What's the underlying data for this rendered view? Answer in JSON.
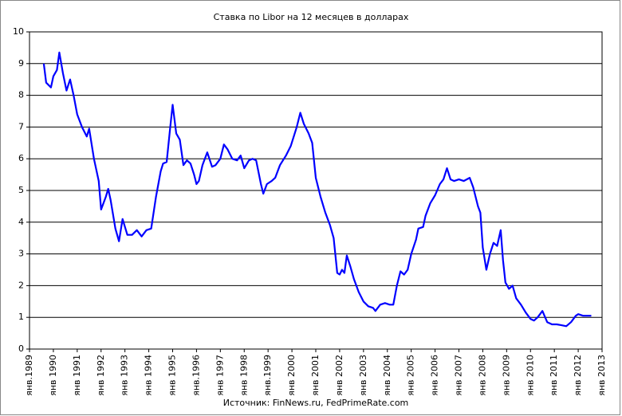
{
  "chart_data": {
    "type": "line",
    "title": "Ставка по Libor на 12 месяцев в долларах",
    "source": "Источник: FinNews.ru, FedPrimeRate.com",
    "grid": true,
    "ylim": [
      0,
      10
    ],
    "yticks": [
      0,
      1,
      2,
      3,
      4,
      5,
      6,
      7,
      8,
      9,
      10
    ],
    "xlim": [
      1989,
      2013
    ],
    "xticks": [
      {
        "value": 1989,
        "label": "янв.1989"
      },
      {
        "value": 1990,
        "label": "янв 1990"
      },
      {
        "value": 1991,
        "label": "янв 1991"
      },
      {
        "value": 1992,
        "label": "янв 1992"
      },
      {
        "value": 1993,
        "label": "янв 1993"
      },
      {
        "value": 1994,
        "label": "янв 1994"
      },
      {
        "value": 1995,
        "label": "янв 1995"
      },
      {
        "value": 1996,
        "label": "янв.1996"
      },
      {
        "value": 1997,
        "label": "янв 1997"
      },
      {
        "value": 1998,
        "label": "янв 1998"
      },
      {
        "value": 1999,
        "label": "янв.1999"
      },
      {
        "value": 2000,
        "label": "янв 2000"
      },
      {
        "value": 2001,
        "label": "янв 2001"
      },
      {
        "value": 2002,
        "label": "янв 2002"
      },
      {
        "value": 2003,
        "label": "янв 2003"
      },
      {
        "value": 2004,
        "label": "янв 2004"
      },
      {
        "value": 2005,
        "label": "янв 2005"
      },
      {
        "value": 2006,
        "label": "янв 2006"
      },
      {
        "value": 2007,
        "label": "янв 2007"
      },
      {
        "value": 2008,
        "label": "янв 2008"
      },
      {
        "value": 2009,
        "label": "янв 2009"
      },
      {
        "value": 2010,
        "label": "янв 2010"
      },
      {
        "value": 2011,
        "label": "янв 2011"
      },
      {
        "value": 2012,
        "label": "янв 2012"
      },
      {
        "value": 2013,
        "label": "янв 2013"
      }
    ],
    "x": [
      1989.6,
      1989.7,
      1989.9,
      1990.0,
      1990.15,
      1990.25,
      1990.4,
      1990.55,
      1990.7,
      1990.85,
      1991.0,
      1991.2,
      1991.4,
      1991.5,
      1991.7,
      1991.9,
      1992.0,
      1992.2,
      1992.3,
      1992.4,
      1992.6,
      1992.75,
      1992.9,
      1993.1,
      1993.3,
      1993.5,
      1993.7,
      1993.9,
      1994.1,
      1994.3,
      1994.5,
      1994.6,
      1994.75,
      1994.9,
      1995.0,
      1995.15,
      1995.3,
      1995.45,
      1995.6,
      1995.75,
      1995.9,
      1996.0,
      1996.1,
      1996.25,
      1996.45,
      1996.65,
      1996.8,
      1997.0,
      1997.15,
      1997.3,
      1997.5,
      1997.7,
      1997.85,
      1998.0,
      1998.2,
      1998.35,
      1998.5,
      1998.7,
      1998.8,
      1998.95,
      1999.15,
      1999.3,
      1999.5,
      1999.75,
      1999.95,
      2000.2,
      2000.35,
      2000.5,
      2000.7,
      2000.85,
      2001.0,
      2001.2,
      2001.4,
      2001.6,
      2001.75,
      2001.9,
      2002.0,
      2002.1,
      2002.2,
      2002.3,
      2002.45,
      2002.6,
      2002.8,
      2003.0,
      2003.2,
      2003.4,
      2003.5,
      2003.7,
      2003.9,
      2004.1,
      2004.25,
      2004.4,
      2004.55,
      2004.7,
      2004.85,
      2005.0,
      2005.2,
      2005.3,
      2005.5,
      2005.6,
      2005.8,
      2006.0,
      2006.2,
      2006.35,
      2006.5,
      2006.65,
      2006.8,
      2007.0,
      2007.2,
      2007.45,
      2007.6,
      2007.8,
      2007.9,
      2008.0,
      2008.15,
      2008.3,
      2008.45,
      2008.6,
      2008.75,
      2008.85,
      2008.95,
      2009.1,
      2009.25,
      2009.4,
      2009.6,
      2009.8,
      2010.0,
      2010.15,
      2010.3,
      2010.5,
      2010.7,
      2010.9,
      2011.1,
      2011.3,
      2011.5,
      2011.7,
      2011.9,
      2012.0,
      2012.2,
      2012.4,
      2012.55
    ],
    "series": [
      {
        "color": "#0000ff",
        "values": [
          9.0,
          8.4,
          8.25,
          8.6,
          8.8,
          9.35,
          8.7,
          8.15,
          8.5,
          8.0,
          7.4,
          7.0,
          6.7,
          6.95,
          6.0,
          5.3,
          4.4,
          4.8,
          5.05,
          4.7,
          3.8,
          3.4,
          4.1,
          3.6,
          3.6,
          3.75,
          3.55,
          3.75,
          3.8,
          4.8,
          5.6,
          5.85,
          5.9,
          7.0,
          7.7,
          6.8,
          6.6,
          5.8,
          5.95,
          5.85,
          5.5,
          5.2,
          5.3,
          5.8,
          6.2,
          5.75,
          5.8,
          6.0,
          6.45,
          6.3,
          6.0,
          5.95,
          6.1,
          5.7,
          5.95,
          6.0,
          5.95,
          5.2,
          4.9,
          5.2,
          5.3,
          5.4,
          5.8,
          6.1,
          6.4,
          7.0,
          7.45,
          7.1,
          6.8,
          6.5,
          5.4,
          4.8,
          4.3,
          3.9,
          3.5,
          2.4,
          2.35,
          2.5,
          2.4,
          2.95,
          2.6,
          2.2,
          1.8,
          1.5,
          1.35,
          1.3,
          1.2,
          1.4,
          1.45,
          1.4,
          1.4,
          2.0,
          2.45,
          2.35,
          2.5,
          3.0,
          3.45,
          3.8,
          3.85,
          4.2,
          4.6,
          4.85,
          5.2,
          5.35,
          5.7,
          5.35,
          5.3,
          5.35,
          5.3,
          5.4,
          5.1,
          4.5,
          4.3,
          3.2,
          2.5,
          3.0,
          3.35,
          3.25,
          3.75,
          2.8,
          2.1,
          1.9,
          2.0,
          1.6,
          1.4,
          1.15,
          0.95,
          0.9,
          1.0,
          1.2,
          0.85,
          0.78,
          0.78,
          0.75,
          0.72,
          0.85,
          1.05,
          1.1,
          1.05,
          1.05,
          1.05
        ]
      }
    ]
  }
}
